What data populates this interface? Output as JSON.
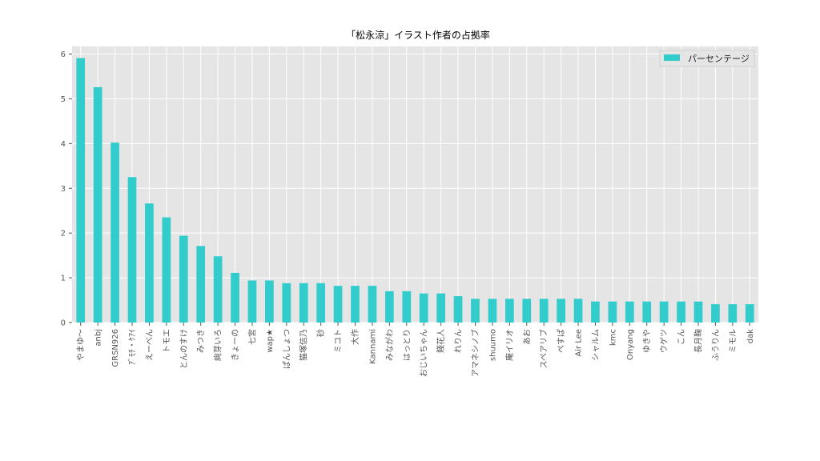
{
  "chart_data": {
    "type": "bar",
    "title": "「松永涼」イラスト作者の占拠率",
    "xlabel": "",
    "ylabel": "",
    "ylim": [
      0,
      6.17
    ],
    "yticks": [
      0,
      1,
      2,
      3,
      4,
      5,
      6
    ],
    "grid": true,
    "legend_position": "top-right",
    "bar_color": "#33cccc",
    "background_color": "#e5e5e5",
    "series": [
      {
        "name": "パーセンテージ",
        "values": [
          5.91,
          5.26,
          4.02,
          3.25,
          2.66,
          2.35,
          1.94,
          1.71,
          1.48,
          1.11,
          0.94,
          0.94,
          0.88,
          0.88,
          0.88,
          0.82,
          0.82,
          0.82,
          0.7,
          0.7,
          0.65,
          0.65,
          0.59,
          0.53,
          0.53,
          0.53,
          0.53,
          0.53,
          0.53,
          0.53,
          0.47,
          0.47,
          0.47,
          0.47,
          0.47,
          0.47,
          0.47,
          0.41,
          0.41,
          0.41
        ]
      }
    ],
    "categories": [
      "やまゆ〜",
      "anbj",
      "GRSN926",
      "ｱﾞﾓﾁ・ｹｱｲ",
      "えーべん",
      "トモエ",
      "とんのすけ",
      "みつき",
      "絢芽いろ",
      "きょーの",
      "七宮",
      "wap★",
      "ぱんしょつ",
      "猫塚信乃",
      "砂",
      "ミコト",
      "大作",
      "Kannami",
      "みながわ",
      "はっとり",
      "おじいちゃん",
      "賤花人",
      "れりん",
      "アマネシノブ",
      "shuumo",
      "庵イリオ",
      "あお",
      "スペアリブ",
      "ぺすぱ",
      "Air Lee",
      "シャルム",
      "kmc",
      "Onyang",
      "ゆきや",
      "ウゲツ",
      "こん",
      "長月鞠",
      "ふうりん",
      "ミモル",
      "dak"
    ]
  }
}
